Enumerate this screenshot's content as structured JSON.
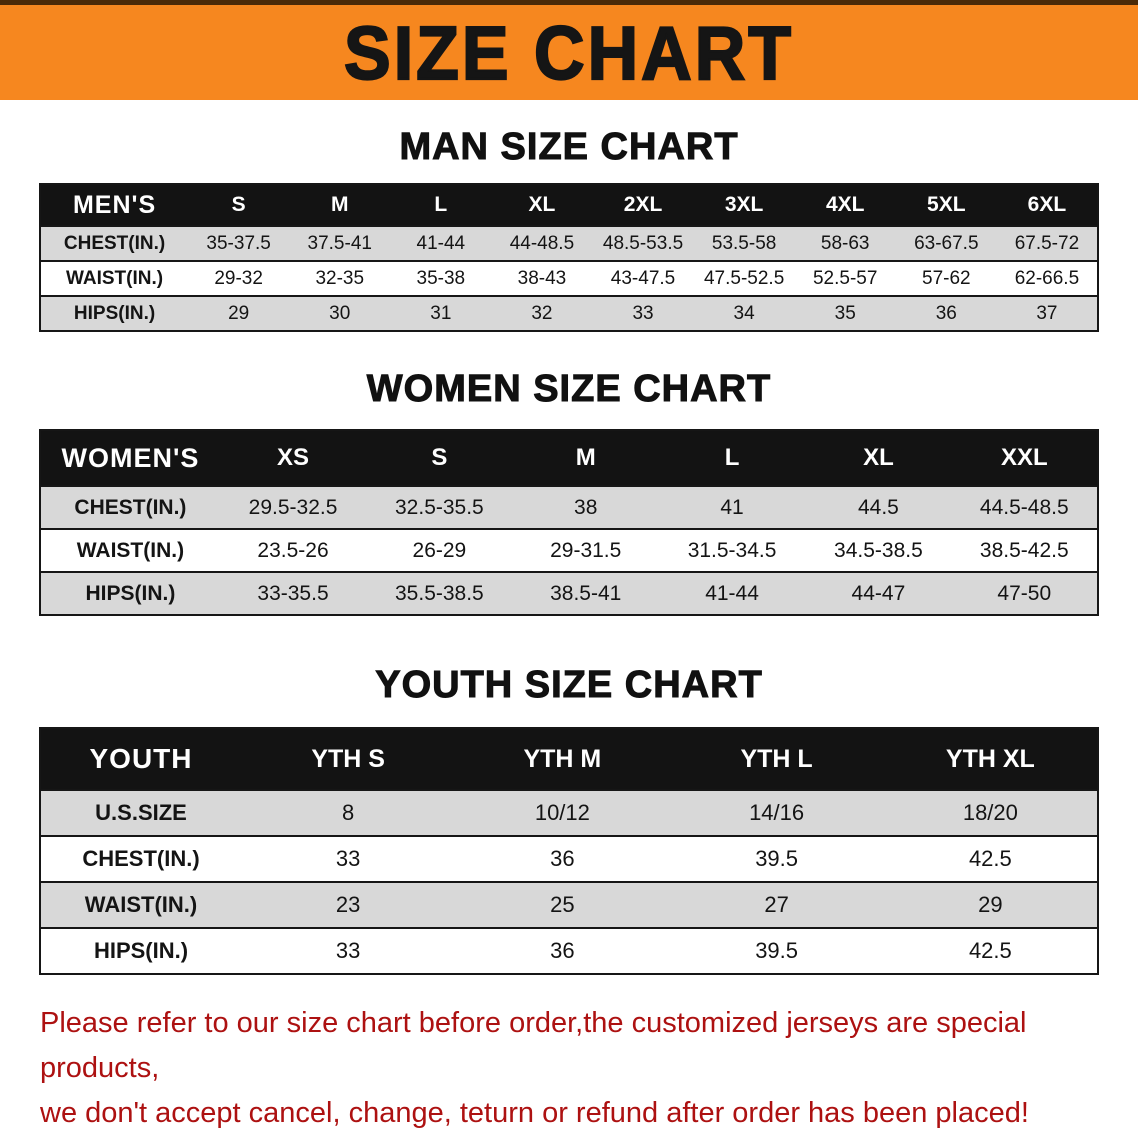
{
  "banner": {
    "title": "SIZE CHART",
    "bg_color": "#f6871f",
    "text_color": "#151515"
  },
  "sections": [
    {
      "heading": "MAN SIZE CHART",
      "table": {
        "name": "mens-size-table",
        "header": [
          "MEN'S",
          "S",
          "M",
          "L",
          "XL",
          "2XL",
          "3XL",
          "4XL",
          "5XL",
          "6XL"
        ],
        "rows": [
          [
            "CHEST(IN.)",
            "35-37.5",
            "37.5-41",
            "41-44",
            "44-48.5",
            "48.5-53.5",
            "53.5-58",
            "58-63",
            "63-67.5",
            "67.5-72"
          ],
          [
            "WAIST(IN.)",
            "29-32",
            "32-35",
            "35-38",
            "38-43",
            "43-47.5",
            "47.5-52.5",
            "52.5-57",
            "57-62",
            "62-66.5"
          ],
          [
            "HIPS(IN.)",
            "29",
            "30",
            "31",
            "32",
            "33",
            "34",
            "35",
            "36",
            "37"
          ]
        ]
      }
    },
    {
      "heading": "WOMEN SIZE CHART",
      "table": {
        "name": "womens-size-table",
        "header": [
          "WOMEN'S",
          "XS",
          "S",
          "M",
          "L",
          "XL",
          "XXL"
        ],
        "rows": [
          [
            "CHEST(IN.)",
            "29.5-32.5",
            "32.5-35.5",
            "38",
            "41",
            "44.5",
            "44.5-48.5"
          ],
          [
            "WAIST(IN.)",
            "23.5-26",
            "26-29",
            "29-31.5",
            "31.5-34.5",
            "34.5-38.5",
            "38.5-42.5"
          ],
          [
            "HIPS(IN.)",
            "33-35.5",
            "35.5-38.5",
            "38.5-41",
            "41-44",
            "44-47",
            "47-50"
          ]
        ]
      }
    },
    {
      "heading": "YOUTH SIZE CHART",
      "table": {
        "name": "youth-size-table",
        "header": [
          "YOUTH",
          "YTH S",
          "YTH M",
          "YTH L",
          "YTH XL"
        ],
        "rows": [
          [
            "U.S.SIZE",
            "8",
            "10/12",
            "14/16",
            "18/20"
          ],
          [
            "CHEST(IN.)",
            "33",
            "36",
            "39.5",
            "42.5"
          ],
          [
            "WAIST(IN.)",
            "23",
            "25",
            "27",
            "29"
          ],
          [
            "HIPS(IN.)",
            "33",
            "36",
            "39.5",
            "42.5"
          ]
        ]
      }
    }
  ],
  "footer": {
    "lines": [
      "Please refer to our size chart before order,the customized jerseys are special products,",
      "we don't accept cancel, change, teturn or refund after order has been placed!"
    ],
    "text_color": "#ad1111"
  }
}
